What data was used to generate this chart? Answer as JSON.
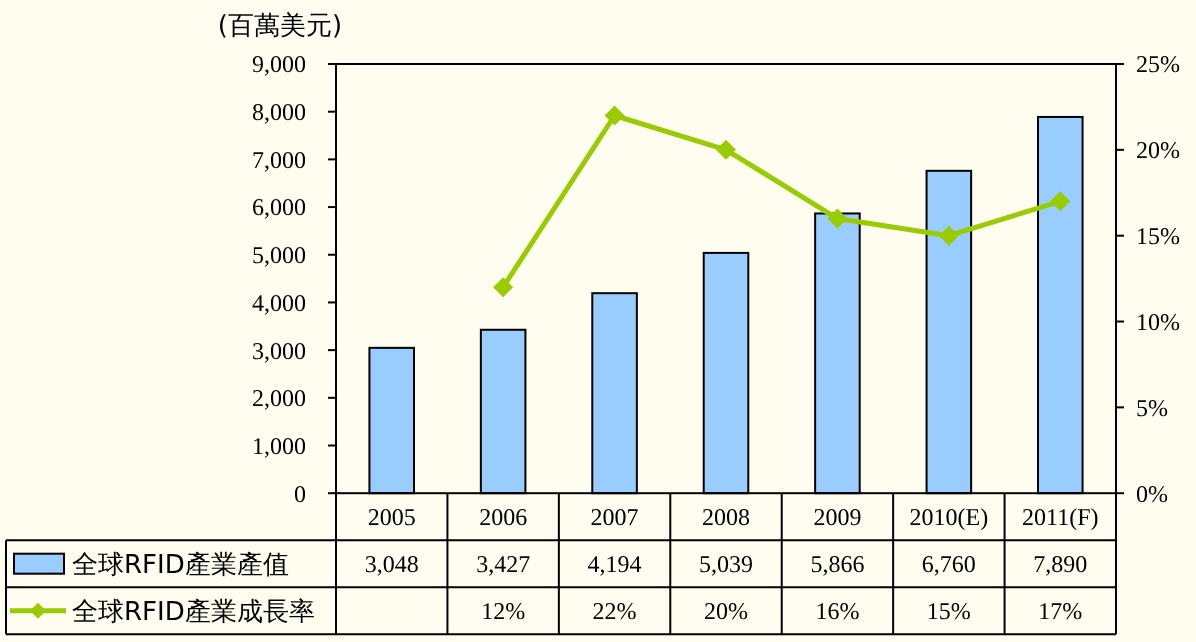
{
  "chart_data": {
    "type": "bar",
    "ylabel": "(百萬美元)",
    "categories": [
      "2005",
      "2006",
      "2007",
      "2008",
      "2009",
      "2010(E)",
      "2011(F)"
    ],
    "series": [
      {
        "name": "全球RFID產業產值",
        "color": "#99ccff",
        "values": [
          3048,
          3427,
          4194,
          5039,
          5866,
          6760,
          7890
        ],
        "value_labels": [
          "3,048",
          "3,427",
          "4,194",
          "5,039",
          "5,866",
          "6,760",
          "7,890"
        ]
      },
      {
        "name": "全球RFID產業成長率",
        "type": "line",
        "axis": "y2",
        "color": "#99cc00",
        "marker": "diamond",
        "values": [
          null,
          12,
          22,
          20,
          16,
          15,
          17
        ],
        "value_labels": [
          null,
          "12%",
          "22%",
          "20%",
          "16%",
          "15%",
          "17%"
        ]
      }
    ],
    "ylim": [
      0,
      9000
    ],
    "yticks": [
      0,
      {
        "value": 1000,
        "label": "1,000"
      },
      {
        "value": 2000,
        "label": "2,000"
      },
      {
        "value": 3000,
        "label": "3,000"
      },
      {
        "value": 4000,
        "label": "4,000"
      },
      {
        "value": 5000,
        "label": "5,000"
      },
      {
        "value": 6000,
        "label": "6,000"
      },
      {
        "value": 7000,
        "label": "7,000"
      },
      {
        "value": 8000,
        "label": "8,000"
      },
      {
        "value": 9000,
        "label": "9,000"
      }
    ],
    "y2lim": [
      0,
      25
    ],
    "y2ticks": [
      {
        "value": 0,
        "label": "0%"
      },
      {
        "value": 5,
        "label": "5%"
      },
      {
        "value": 10,
        "label": "10%"
      },
      {
        "value": 15,
        "label": "15%"
      },
      {
        "value": 20,
        "label": "20%"
      },
      {
        "value": 25,
        "label": "25%"
      }
    ],
    "legend": "bottom"
  }
}
